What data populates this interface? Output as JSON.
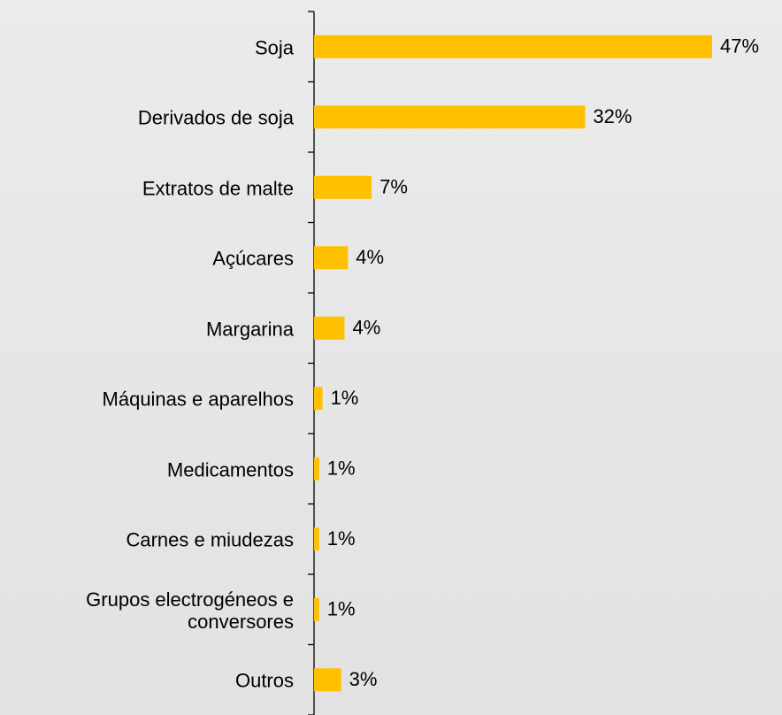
{
  "chart_data": {
    "type": "bar",
    "orientation": "horizontal",
    "categories": [
      "Soja",
      "Derivados de soja",
      "Extratos de malte",
      "Açúcares",
      "Margarina",
      "Máquinas e aparelhos",
      "Medicamentos",
      "Carnes e miudezas",
      "Grupos electrogéneos e conversores",
      "Outros"
    ],
    "values": [
      47,
      32,
      6.8,
      4.0,
      3.6,
      1.0,
      0.6,
      0.6,
      0.6,
      3.2
    ],
    "value_labels": [
      "47%",
      "32%",
      "7%",
      "4%",
      "4%",
      "1%",
      "1%",
      "1%",
      "1%",
      "3%"
    ],
    "color": "#ffc000"
  }
}
